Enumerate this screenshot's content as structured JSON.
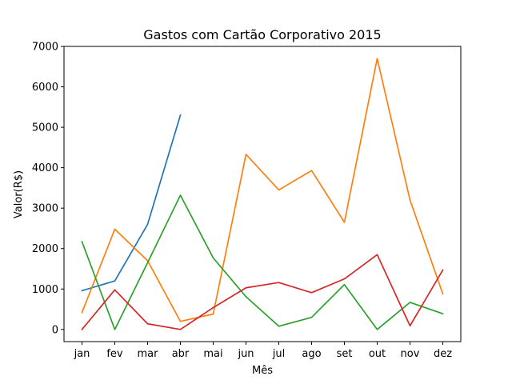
{
  "chart_data": {
    "type": "line",
    "title": "Gastos com Cartão Corporativo 2015",
    "xlabel": "Mês",
    "ylabel": "Valor(R$)",
    "categories": [
      "jan",
      "fev",
      "mar",
      "abr",
      "mai",
      "jun",
      "jul",
      "ago",
      "set",
      "out",
      "nov",
      "dez"
    ],
    "ylim": [
      -300,
      7000
    ],
    "yticks": [
      0,
      1000,
      2000,
      3000,
      4000,
      5000,
      6000,
      7000
    ],
    "grid": false,
    "legend": "none",
    "series": [
      {
        "color": "#1f77b4",
        "values": [
          960,
          1200,
          2600,
          5300,
          null,
          null,
          null,
          null,
          null,
          null,
          null,
          null
        ]
      },
      {
        "color": "#ff7f0e",
        "values": [
          420,
          2480,
          1700,
          200,
          380,
          4330,
          3450,
          3930,
          2650,
          6700,
          3200,
          880
        ]
      },
      {
        "color": "#2ca02c",
        "values": [
          2170,
          0,
          1650,
          3320,
          1770,
          810,
          80,
          300,
          1110,
          0,
          670,
          390
        ]
      },
      {
        "color": "#d62728",
        "values": [
          0,
          980,
          140,
          0,
          540,
          1030,
          1160,
          910,
          1250,
          1850,
          90,
          1470
        ]
      }
    ]
  }
}
